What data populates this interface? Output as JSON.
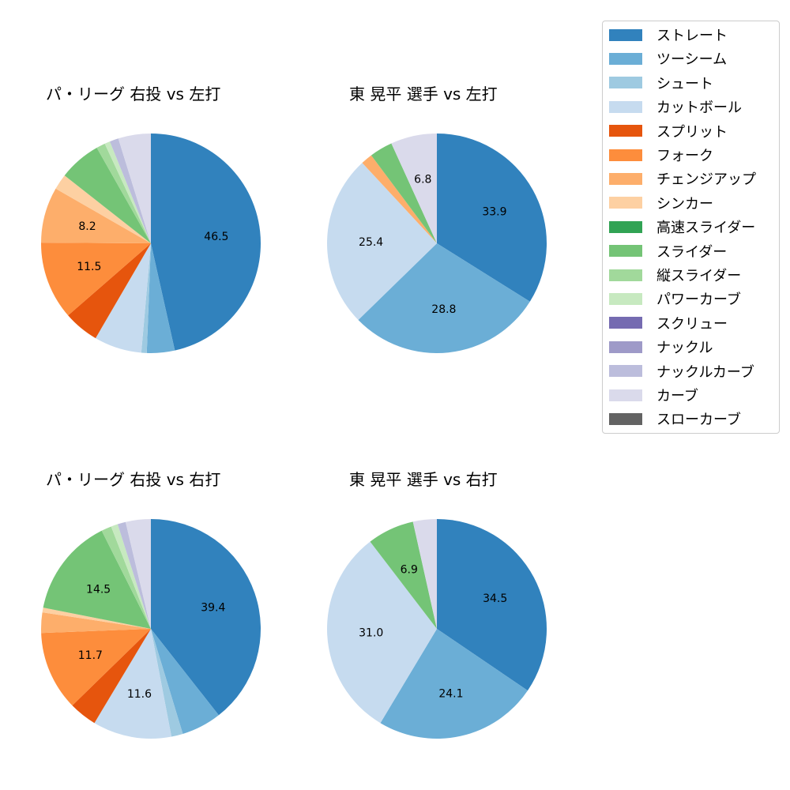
{
  "chart_data": [
    {
      "type": "pie",
      "title": "パ・リーグ 右投 vs 左打",
      "start_angle": 90,
      "direction": "clockwise",
      "categories": [
        "ストレート",
        "ツーシーム",
        "シュート",
        "カットボール",
        "スプリット",
        "フォーク",
        "チェンジアップ",
        "シンカー",
        "スライダー",
        "縦スライダー",
        "パワーカーブ",
        "ナックルカーブ",
        "カーブ"
      ],
      "values": [
        46.5,
        4.1,
        0.8,
        7.0,
        5.2,
        11.5,
        8.2,
        2.3,
        6.2,
        1.3,
        0.8,
        1.3,
        4.8
      ],
      "labels_shown": [
        "46.5",
        "11.5",
        "8.2"
      ]
    },
    {
      "type": "pie",
      "title": "東 晃平 選手 vs 左打",
      "start_angle": 90,
      "direction": "clockwise",
      "categories": [
        "ストレート",
        "ツーシーム",
        "カットボール",
        "チェンジアップ",
        "スライダー",
        "カーブ"
      ],
      "values": [
        33.9,
        28.8,
        25.4,
        1.7,
        3.4,
        6.8
      ],
      "labels_shown": [
        "33.9",
        "28.8",
        "25.4",
        "6.8"
      ]
    },
    {
      "type": "pie",
      "title": "パ・リーグ 右投 vs 右打",
      "start_angle": 90,
      "direction": "clockwise",
      "categories": [
        "ストレート",
        "ツーシーム",
        "シュート",
        "カットボール",
        "スプリット",
        "フォーク",
        "チェンジアップ",
        "シンカー",
        "スライダー",
        "縦スライダー",
        "パワーカーブ",
        "ナックルカーブ",
        "カーブ"
      ],
      "values": [
        39.4,
        5.9,
        1.7,
        11.6,
        4.1,
        11.7,
        3.0,
        0.7,
        14.5,
        1.5,
        1.0,
        1.2,
        3.7
      ],
      "labels_shown": [
        "39.4",
        "11.6",
        "11.7",
        "14.5"
      ]
    },
    {
      "type": "pie",
      "title": "東 晃平 選手 vs 右打",
      "start_angle": 90,
      "direction": "clockwise",
      "categories": [
        "ストレート",
        "ツーシーム",
        "カットボール",
        "スライダー",
        "カーブ"
      ],
      "values": [
        34.5,
        24.1,
        31.0,
        6.9,
        3.5
      ],
      "labels_shown": [
        "34.5",
        "24.1",
        "31.0",
        "6.9"
      ]
    }
  ],
  "legend": {
    "position": "upper right",
    "items": [
      {
        "label": "ストレート",
        "color": "#3182bd"
      },
      {
        "label": "ツーシーム",
        "color": "#6baed6"
      },
      {
        "label": "シュート",
        "color": "#9ecae1"
      },
      {
        "label": "カットボール",
        "color": "#c6dbef"
      },
      {
        "label": "スプリット",
        "color": "#e6550d"
      },
      {
        "label": "フォーク",
        "color": "#fd8d3c"
      },
      {
        "label": "チェンジアップ",
        "color": "#fdae6b"
      },
      {
        "label": "シンカー",
        "color": "#fdd0a2"
      },
      {
        "label": "高速スライダー",
        "color": "#31a354"
      },
      {
        "label": "スライダー",
        "color": "#74c476"
      },
      {
        "label": "縦スライダー",
        "color": "#a1d99b"
      },
      {
        "label": "パワーカーブ",
        "color": "#c7e9c0"
      },
      {
        "label": "スクリュー",
        "color": "#756bb1"
      },
      {
        "label": "ナックル",
        "color": "#9e9ac8"
      },
      {
        "label": "ナックルカーブ",
        "color": "#bcbddc"
      },
      {
        "label": "カーブ",
        "color": "#dadaeb"
      },
      {
        "label": "スローカーブ",
        "color": "#636363"
      }
    ]
  }
}
